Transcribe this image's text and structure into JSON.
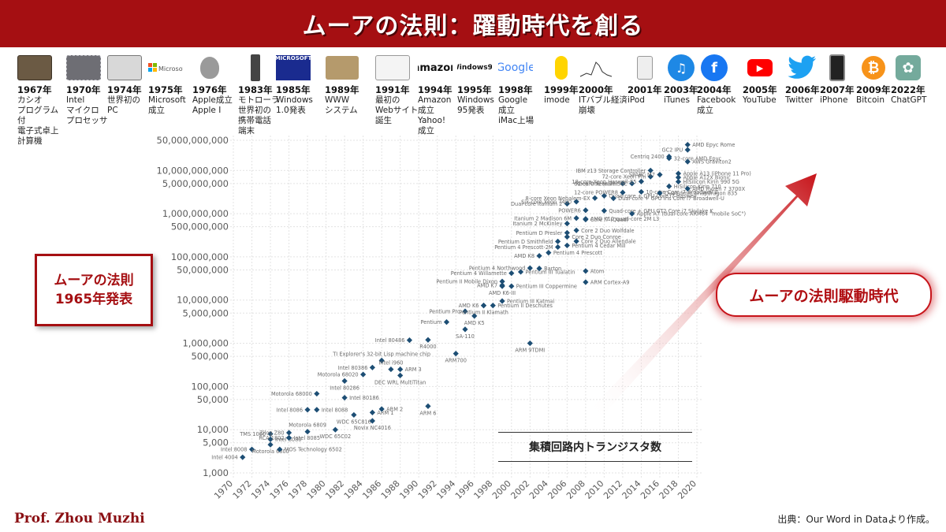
{
  "header": {
    "title": "ムーアの法則：躍動時代を創る"
  },
  "timeline": [
    {
      "year": "1967年",
      "text": "カシオ\nプログラム付\n電子式卓上\n計算機",
      "icon": "calculator-icon"
    },
    {
      "year": "1970年",
      "text": "Intel\nマイクロ\nプロセッサ",
      "icon": "microprocessor-chip-icon"
    },
    {
      "year": "1974年",
      "text": "世界初の\nPC",
      "icon": "personal-computer-icon"
    },
    {
      "year": "1975年",
      "text": "Microsoft\n成立",
      "icon": "microsoft-logo-icon",
      "icon_text": "Microsoft"
    },
    {
      "year": "1976年",
      "text": "Apple成立\nApple Ⅰ",
      "icon": "apple-logo-icon"
    },
    {
      "year": "1983年",
      "text": "モトローラ\n世界初の\n携帯電話\n端末",
      "icon": "mobile-phone-icon"
    },
    {
      "year": "1985年",
      "text": "Windows\n1.0発表",
      "icon": "windows-1-box-icon",
      "icon_text": "MICROSOFT"
    },
    {
      "year": "1989年",
      "text": "WWW\nシステム",
      "icon": "www-inventor-photo-icon"
    },
    {
      "year": "1991年",
      "text": "最初の\nWebサイト\n誕生",
      "icon": "first-website-icon"
    },
    {
      "year": "1994年",
      "text": "Amazon\n成立\nYahoo!\n成立",
      "icon": "amazon-logo-icon",
      "icon_text": "amazon"
    },
    {
      "year": "1995年",
      "text": "Windows\n95発表",
      "icon": "windows95-logo-icon",
      "icon_text": "Windows95"
    },
    {
      "year": "1998年",
      "text": "Google\n成立\niMac上場",
      "icon": "google-logo-icon",
      "icon_text": "Google"
    },
    {
      "year": "1999年",
      "text": "imode",
      "icon": "imode-icon"
    },
    {
      "year": "2000年",
      "text": "ITバブル経済\n崩壊",
      "icon": "stock-chart-icon"
    },
    {
      "year": "2001年",
      "text": "iPod",
      "icon": "ipod-icon"
    },
    {
      "year": "2003年",
      "text": "iTunes",
      "icon": "itunes-icon"
    },
    {
      "year": "2004年",
      "text": "Facebook\n成立",
      "icon": "facebook-icon",
      "icon_text": "f"
    },
    {
      "year": "2005年",
      "text": "YouTube",
      "icon": "youtube-icon"
    },
    {
      "year": "2006年",
      "text": "Twitter",
      "icon": "twitter-bird-icon"
    },
    {
      "year": "2007年",
      "text": "iPhone",
      "icon": "iphone-icon"
    },
    {
      "year": "2009年",
      "text": "Bitcoin",
      "icon": "bitcoin-icon",
      "icon_text": "₿"
    },
    {
      "year": "2022年",
      "text": "ChatGPT",
      "icon": "chatgpt-icon"
    }
  ],
  "callouts": {
    "left": "ムーアの法則\n1965年発表",
    "right": "ムーアの法則駆動時代",
    "legend": "集積回路内トランジスタ数"
  },
  "footer": {
    "author": "Prof. Zhou Muzhi",
    "source": "出典：Our Word in Dataより作成。"
  },
  "colors": {
    "banner": "#a50f12",
    "accent": "#c7141a",
    "marker": "#1d4e74"
  },
  "chart_data": {
    "type": "scatter",
    "title": "集積回路内トランジスタ数",
    "xlabel": "",
    "ylabel": "",
    "xlim": [
      1969,
      2021
    ],
    "ylim": [
      1000,
      80000000000
    ],
    "yscale": "log",
    "grid": true,
    "x_ticks": [
      1970,
      1972,
      1974,
      1976,
      1978,
      1980,
      1982,
      1984,
      1986,
      1988,
      1990,
      1992,
      1994,
      1996,
      1998,
      2000,
      2002,
      2004,
      2006,
      2008,
      2010,
      2012,
      2014,
      2016,
      2018,
      2020
    ],
    "y_ticks": [
      {
        "v": 1000,
        "label": "1,000"
      },
      {
        "v": 5000,
        "label": "5,000"
      },
      {
        "v": 10000,
        "label": "10,000"
      },
      {
        "v": 50000,
        "label": "50,000"
      },
      {
        "v": 100000,
        "label": "100,000"
      },
      {
        "v": 500000,
        "label": "500,000"
      },
      {
        "v": 1000000,
        "label": "1,000,000"
      },
      {
        "v": 5000000,
        "label": "5,000,000"
      },
      {
        "v": 10000000,
        "label": "10,000,000"
      },
      {
        "v": 50000000,
        "label": "50,000,000"
      },
      {
        "v": 100000000,
        "label": "100,000,000"
      },
      {
        "v": 500000000,
        "label": "500,000,000"
      },
      {
        "v": 1000000000,
        "label": "1,000,000,000"
      },
      {
        "v": 5000000000,
        "label": "5,000,000,000"
      },
      {
        "v": 10000000000,
        "label": "10,000,000,000"
      },
      {
        "v": 50000000000,
        "label": "50,000,000,000"
      }
    ],
    "points": [
      {
        "x": 1971,
        "y": 2300,
        "label": "Intel 4004",
        "side": "left"
      },
      {
        "x": 1972,
        "y": 3500,
        "label": "Intel 8008",
        "side": "left"
      },
      {
        "x": 1974,
        "y": 4500,
        "label": "Motorola 6800",
        "side": "below"
      },
      {
        "x": 1974,
        "y": 6000,
        "label": "Intel 8080",
        "side": "right"
      },
      {
        "x": 1974,
        "y": 8000,
        "label": "TMS 1000",
        "side": "left"
      },
      {
        "x": 1975,
        "y": 3500,
        "label": "MOS Technology 6502",
        "side": "right"
      },
      {
        "x": 1976,
        "y": 6500,
        "label": "RCA 1802",
        "side": "left"
      },
      {
        "x": 1976,
        "y": 8500,
        "label": "Zilog Z80",
        "side": "left"
      },
      {
        "x": 1976,
        "y": 6500,
        "label": "Intel 8085",
        "side": "right"
      },
      {
        "x": 1978,
        "y": 9000,
        "label": "Motorola 6809",
        "side": "above"
      },
      {
        "x": 1978,
        "y": 29000,
        "label": "Intel 8086",
        "side": "left"
      },
      {
        "x": 1979,
        "y": 29000,
        "label": "Intel 8088",
        "side": "right"
      },
      {
        "x": 1979,
        "y": 68000,
        "label": "Motorola 68000",
        "side": "left"
      },
      {
        "x": 1981,
        "y": 10000,
        "label": "WDC 65C02",
        "side": "below"
      },
      {
        "x": 1982,
        "y": 55000,
        "label": "Intel 80186",
        "side": "right"
      },
      {
        "x": 1982,
        "y": 134000,
        "label": "Intel 80286",
        "side": "below"
      },
      {
        "x": 1983,
        "y": 22000,
        "label": "WDC 65C816",
        "side": "below"
      },
      {
        "x": 1984,
        "y": 190000,
        "label": "Motorola 68020",
        "side": "left"
      },
      {
        "x": 1985,
        "y": 16000,
        "label": "Novix NC4016",
        "side": "below"
      },
      {
        "x": 1985,
        "y": 25000,
        "label": "ARM 1",
        "side": "right"
      },
      {
        "x": 1985,
        "y": 275000,
        "label": "Intel 80386",
        "side": "left"
      },
      {
        "x": 1986,
        "y": 30000,
        "label": "ARM 2",
        "side": "right"
      },
      {
        "x": 1986,
        "y": 400000,
        "label": "TI Explorer's 32-bit Lisp machine chip",
        "side": "above"
      },
      {
        "x": 1987,
        "y": 250000,
        "label": "Intel i960",
        "side": "above"
      },
      {
        "x": 1988,
        "y": 250000,
        "label": "ARM 3",
        "side": "right"
      },
      {
        "x": 1988,
        "y": 180000,
        "label": "DEC WRL MultiTitan",
        "side": "below"
      },
      {
        "x": 1989,
        "y": 1180000,
        "label": "Intel 80486",
        "side": "left"
      },
      {
        "x": 1991,
        "y": 35000,
        "label": "ARM 6",
        "side": "below"
      },
      {
        "x": 1991,
        "y": 1200000,
        "label": "R4000",
        "side": "below"
      },
      {
        "x": 1993,
        "y": 3100000,
        "label": "Pentium",
        "side": "left"
      },
      {
        "x": 1994,
        "y": 578000,
        "label": "ARM700",
        "side": "below"
      },
      {
        "x": 1995,
        "y": 2100000,
        "label": "SA-110",
        "side": "below"
      },
      {
        "x": 1995,
        "y": 5500000,
        "label": "Pentium Pro",
        "side": "left"
      },
      {
        "x": 1996,
        "y": 4300000,
        "label": "AMD K5",
        "side": "below"
      },
      {
        "x": 1997,
        "y": 7500000,
        "label": "AMD K6",
        "side": "left"
      },
      {
        "x": 1997,
        "y": 7500000,
        "label": "Pentium II Klamath",
        "side": "below"
      },
      {
        "x": 1998,
        "y": 7500000,
        "label": "Pentium II Deschutes",
        "side": "right"
      },
      {
        "x": 1999,
        "y": 9500000,
        "label": "Pentium III Katmai",
        "side": "right"
      },
      {
        "x": 1999,
        "y": 21000000,
        "label": "AMD K6-III",
        "side": "below"
      },
      {
        "x": 1999,
        "y": 27000000,
        "label": "Pentium II Mobile Dixon",
        "side": "left"
      },
      {
        "x": 1999,
        "y": 22000000,
        "label": "AMD K7",
        "side": "left"
      },
      {
        "x": 2000,
        "y": 21000000,
        "label": "Pentium III Coppermine",
        "side": "right"
      },
      {
        "x": 2000,
        "y": 42000000,
        "label": "Pentium 4 Willamette",
        "side": "left"
      },
      {
        "x": 2001,
        "y": 45000000,
        "label": "Pentium III Tualatin",
        "side": "right"
      },
      {
        "x": 2002,
        "y": 55000000,
        "label": "Pentium 4 Northwood",
        "side": "left"
      },
      {
        "x": 2003,
        "y": 54000000,
        "label": "Barton",
        "side": "right"
      },
      {
        "x": 2003,
        "y": 105900000,
        "label": "AMD K8",
        "side": "left"
      },
      {
        "x": 2004,
        "y": 125000000,
        "label": "Pentium 4 Prescott",
        "side": "right"
      },
      {
        "x": 2002,
        "y": 1000000,
        "label": "ARM 9TDMI",
        "side": "below"
      },
      {
        "x": 2005,
        "y": 169000000,
        "label": "Pentium 4 Prescott-2M",
        "side": "left"
      },
      {
        "x": 2005,
        "y": 228000000,
        "label": "Pentium D Smithfield",
        "side": "left"
      },
      {
        "x": 2006,
        "y": 184000000,
        "label": "Pentium 4 Cedar Mill",
        "side": "right"
      },
      {
        "x": 2006,
        "y": 362000000,
        "label": "Pentium D Presler",
        "side": "left"
      },
      {
        "x": 2006,
        "y": 291000000,
        "label": "Core 2 Duo Conroe",
        "side": "right"
      },
      {
        "x": 2006,
        "y": 592000000,
        "label": "Itanium 2 McKinley",
        "side": "left"
      },
      {
        "x": 2006,
        "y": 1700000000,
        "label": "Dual-core Itanium 2",
        "side": "left"
      },
      {
        "x": 2007,
        "y": 789000000,
        "label": "Itanium 2 Madison 6M",
        "side": "left"
      },
      {
        "x": 2007,
        "y": 411000000,
        "label": "Core 2 Duo Wolfdale",
        "side": "right"
      },
      {
        "x": 2007,
        "y": 230000000,
        "label": "Core 2 Duo Allendale",
        "side": "right"
      },
      {
        "x": 2008,
        "y": 47000000,
        "label": "Atom",
        "side": "right"
      },
      {
        "x": 2008,
        "y": 26000000,
        "label": "ARM Cortex-A9",
        "side": "right"
      },
      {
        "x": 2007,
        "y": 1900000000,
        "label": "Six-core Xeon 7400",
        "side": "left"
      },
      {
        "x": 2008,
        "y": 731000000,
        "label": "Core i7 (Quad)",
        "side": "right"
      },
      {
        "x": 2008,
        "y": 758000000,
        "label": "AMD K10 quad-core 2M L3",
        "side": "right"
      },
      {
        "x": 2008,
        "y": 1200000000,
        "label": "POWER6",
        "side": "left"
      },
      {
        "x": 2009,
        "y": 2300000000,
        "label": "8-core Xeon Nehalem-EX",
        "side": "left"
      },
      {
        "x": 2010,
        "y": 2600000000,
        "label": "Quad-core + GPU Core i7 Haswell",
        "side": "right"
      },
      {
        "x": 2010,
        "y": 1170000000,
        "label": "Quad-core + GPU GT2 Core i7 Skylake K",
        "side": "right"
      },
      {
        "x": 2011,
        "y": 2270000000,
        "label": "Dual-core + GPU Iris Core i7 Broadwell-U",
        "side": "right"
      },
      {
        "x": 2012,
        "y": 3100000000,
        "label": "12-core POWER8",
        "side": "left"
      },
      {
        "x": 2012,
        "y": 5000000000,
        "label": "61-core Xeon Phi",
        "side": "left"
      },
      {
        "x": 2013,
        "y": 1000000000,
        "label": "Apple A7 (dual-core ARM64 \"mobile SoC\")",
        "side": "right"
      },
      {
        "x": 2013,
        "y": 5000000000,
        "label": "Xbox One main SoC",
        "side": "left"
      },
      {
        "x": 2014,
        "y": 5560000000,
        "label": "18-core Xeon Haswell-E5",
        "side": "left"
      },
      {
        "x": 2014,
        "y": 3200000000,
        "label": "10-core Core i7 Broadwell-E",
        "side": "right"
      },
      {
        "x": 2015,
        "y": 10000000000,
        "label": "IBM z13 Storage Controller",
        "side": "left"
      },
      {
        "x": 2015,
        "y": 7200000000,
        "label": "72-core Xeon Phi",
        "side": "left"
      },
      {
        "x": 2016,
        "y": 3000000000,
        "label": "Qualcomm Snapdragon 835",
        "side": "right"
      },
      {
        "x": 2016,
        "y": 8000000000,
        "label": "SPARC M7",
        "side": "left"
      },
      {
        "x": 2017,
        "y": 19200000000,
        "label": "32-core AMD Epyc",
        "side": "right"
      },
      {
        "x": 2017,
        "y": 21000000000,
        "label": "Centriq 2400",
        "side": "left"
      },
      {
        "x": 2017,
        "y": 4300000000,
        "label": "HiSilicon Kirin 710",
        "side": "right"
      },
      {
        "x": 2018,
        "y": 6900000000,
        "label": "Apple A12X Bionic",
        "side": "right"
      },
      {
        "x": 2018,
        "y": 5500000000,
        "label": "HiSilicon Kirin 990 5G",
        "side": "right"
      },
      {
        "x": 2018,
        "y": 8500000000,
        "label": "Apple A13 (iPhone 11 Pro)",
        "side": "right"
      },
      {
        "x": 2019,
        "y": 3800000000,
        "label": "AMD Ryzen 7 3700X",
        "side": "right"
      },
      {
        "x": 2019,
        "y": 16000000000,
        "label": "AWS Graviton2",
        "side": "right"
      },
      {
        "x": 2019,
        "y": 30000000000,
        "label": "GC2 IPU",
        "side": "left"
      },
      {
        "x": 2019,
        "y": 39540000000,
        "label": "AMD Epyc Rome",
        "side": "right"
      }
    ]
  }
}
